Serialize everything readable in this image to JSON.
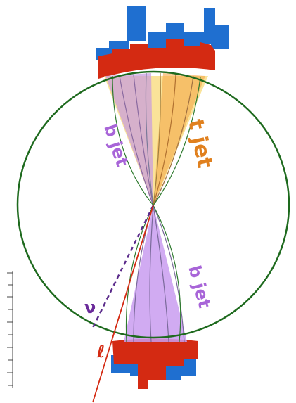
{
  "labels": {
    "b_jet_top": "b jet",
    "t_jet": "t jet",
    "b_jet_bottom": "b jet",
    "neutrino": "ν",
    "lepton": "ℓ"
  }
}
